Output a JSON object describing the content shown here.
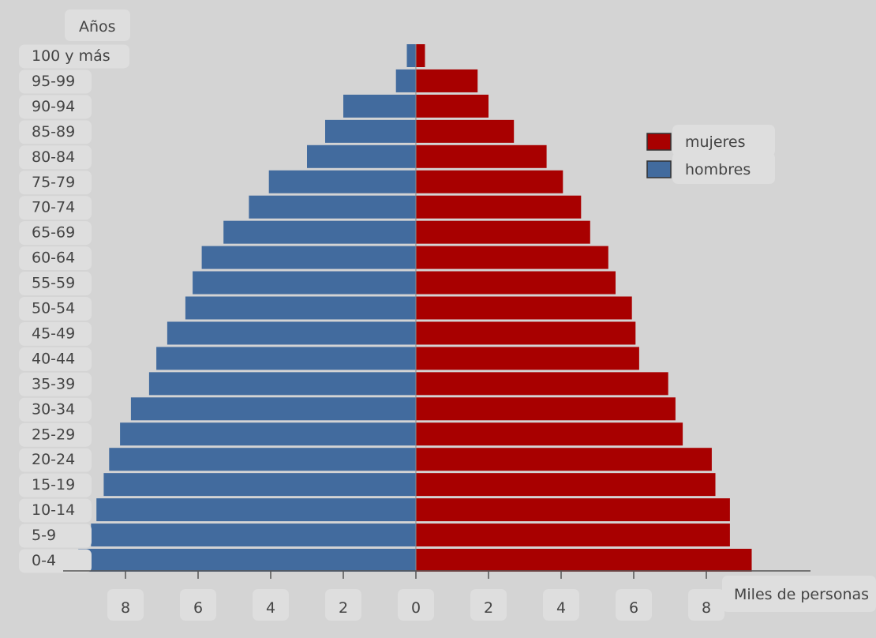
{
  "chart_data": {
    "type": "bar",
    "orientation": "horizontal-population-pyramid",
    "y_title": "Años",
    "x_title": "Miles de personas",
    "categories": [
      "100 y más",
      "95-99",
      "90-94",
      "85-89",
      "80-84",
      "75-79",
      "70-74",
      "65-69",
      "60-64",
      "55-59",
      "50-54",
      "45-49",
      "40-44",
      "35-39",
      "30-34",
      "25-29",
      "20-24",
      "15-19",
      "10-14",
      "5-9",
      "0-4"
    ],
    "series": [
      {
        "name": "mujeres",
        "color": "#a80000",
        "values": [
          0.25,
          1.7,
          2.0,
          2.7,
          3.6,
          4.05,
          4.55,
          4.8,
          5.3,
          5.5,
          5.95,
          6.05,
          6.15,
          6.95,
          7.15,
          7.35,
          8.15,
          8.25,
          8.65,
          8.65,
          9.25
        ]
      },
      {
        "name": "hombres",
        "color": "#426b9e",
        "values": [
          0.25,
          0.55,
          2.0,
          2.5,
          3.0,
          4.05,
          4.6,
          5.3,
          5.9,
          6.15,
          6.35,
          6.85,
          7.15,
          7.35,
          7.85,
          8.15,
          8.45,
          8.6,
          8.8,
          8.95,
          9.3
        ]
      }
    ],
    "x_ticks": [
      "8",
      "6",
      "4",
      "2",
      "0",
      "2",
      "4",
      "6",
      "8"
    ],
    "x_tick_values": [
      -8,
      -6,
      -4,
      -2,
      0,
      2,
      4,
      6,
      8
    ],
    "xlim": [
      -9.5,
      10
    ],
    "grid": false,
    "legend_position": "right"
  }
}
